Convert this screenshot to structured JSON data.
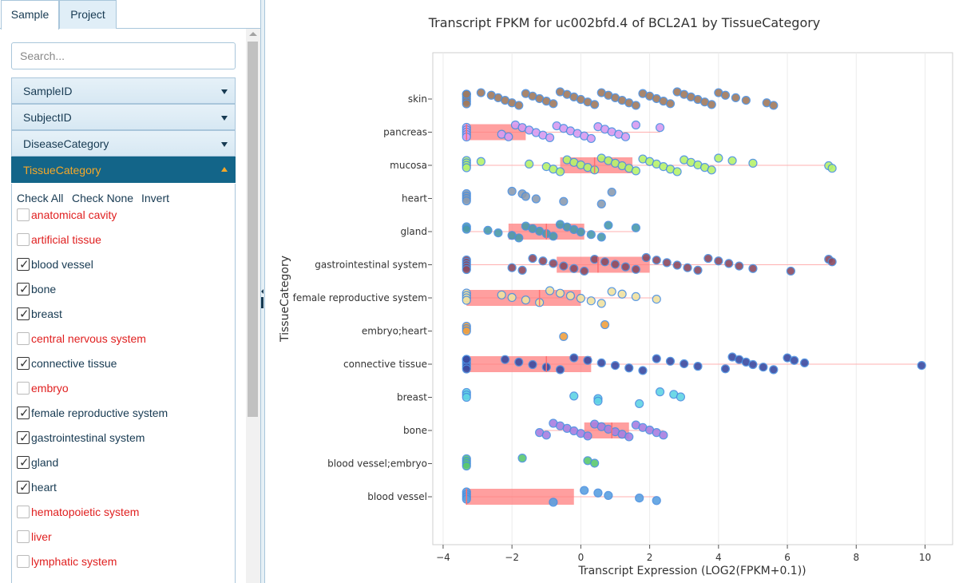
{
  "tabs": [
    {
      "label": "Sample",
      "active": true
    },
    {
      "label": "Project",
      "active": false
    }
  ],
  "search": {
    "placeholder": "Search..."
  },
  "accordion": [
    {
      "label": "SampleID",
      "open": false
    },
    {
      "label": "SubjectID",
      "open": false
    },
    {
      "label": "DiseaseCategory",
      "open": false
    },
    {
      "label": "TissueCategory",
      "open": true
    }
  ],
  "filter_actions": {
    "check_all": "Check All",
    "check_none": "Check None",
    "invert": "Invert"
  },
  "tissue_filters": [
    {
      "label": "anatomical cavity",
      "checked": false
    },
    {
      "label": "artificial tissue",
      "checked": false
    },
    {
      "label": "blood vessel",
      "checked": true
    },
    {
      "label": "bone",
      "checked": true
    },
    {
      "label": "breast",
      "checked": true
    },
    {
      "label": "central nervous system",
      "checked": false
    },
    {
      "label": "connective tissue",
      "checked": true
    },
    {
      "label": "embryo",
      "checked": false
    },
    {
      "label": "female reproductive system",
      "checked": true
    },
    {
      "label": "gastrointestinal system",
      "checked": true
    },
    {
      "label": "gland",
      "checked": true
    },
    {
      "label": "heart",
      "checked": true
    },
    {
      "label": "hematopoietic system",
      "checked": false
    },
    {
      "label": "liver",
      "checked": false
    },
    {
      "label": "lymphatic system",
      "checked": false
    }
  ],
  "colors": {
    "accent": "#136589",
    "accent_text": "#f6a828",
    "unchecked_text": "#e02020",
    "checked_text": "#173a52",
    "box": "#ff7f7f"
  },
  "icons": {
    "accordion_closed": "caret-down-icon",
    "accordion_open": "caret-up-icon",
    "check": "checkmark-icon"
  },
  "chart_data": {
    "type": "scatter",
    "title": "Transcript FPKM for uc002bfd.4 of BCL2A1 by TissueCategory",
    "xlabel": "Transcript Expression (LOG2(FPKM+0.1))",
    "ylabel": "TissueCategory",
    "xlim": [
      -4.3,
      10.8
    ],
    "xticks": [
      -4,
      -2,
      0,
      2,
      4,
      6,
      8,
      10
    ],
    "grid": true,
    "legend": "none",
    "categories": [
      "skin",
      "pancreas",
      "mucosa",
      "heart",
      "gland",
      "gastrointestinal system",
      "female reproductive system",
      "embryo;heart",
      "connective tissue",
      "breast",
      "bone",
      "blood vessel;embryo",
      "blood vessel"
    ],
    "series": [
      {
        "category": "skin",
        "color": "#a07a5e",
        "box": null,
        "points": [
          -3.32,
          -3.32,
          -3.32,
          -3.32,
          -3.32,
          -3.32,
          -2.9,
          -2.6,
          -2.4,
          -2.2,
          -2.0,
          -1.8,
          -1.6,
          -1.4,
          -1.2,
          -1.0,
          -0.8,
          -0.6,
          -0.4,
          -0.2,
          0.0,
          0.2,
          0.4,
          0.6,
          0.8,
          1.0,
          1.2,
          1.4,
          1.6,
          1.8,
          2.0,
          2.2,
          2.4,
          2.6,
          2.8,
          3.0,
          3.2,
          3.4,
          3.6,
          3.8,
          4.0,
          4.2,
          4.5,
          4.8,
          5.4,
          5.6
        ]
      },
      {
        "category": "pancreas",
        "color": "#d79bf0",
        "box": [
          -3.32,
          -3.32,
          -1.6
        ],
        "points": [
          -3.32,
          -3.32,
          -3.32,
          -3.32,
          -3.32,
          -2.3,
          -2.1,
          -1.9,
          -1.7,
          -1.5,
          -1.3,
          -1.1,
          -0.9,
          -0.7,
          -0.5,
          -0.3,
          -0.1,
          0.1,
          0.3,
          0.5,
          0.7,
          0.9,
          1.1,
          1.3,
          1.6,
          2.3
        ]
      },
      {
        "category": "mucosa",
        "color": "#b6f26c",
        "box": [
          -0.6,
          0.4,
          1.5
        ],
        "points": [
          -3.32,
          -3.32,
          -3.32,
          -3.32,
          -2.9,
          -1.5,
          -1.0,
          -0.8,
          -0.6,
          -0.4,
          -0.2,
          0.0,
          0.2,
          0.4,
          0.6,
          0.8,
          1.0,
          1.2,
          1.4,
          1.6,
          1.8,
          2.0,
          2.2,
          2.4,
          2.6,
          2.8,
          3.0,
          3.2,
          3.4,
          3.6,
          3.8,
          4.0,
          4.4,
          5.0,
          7.2,
          7.3
        ]
      },
      {
        "category": "heart",
        "color": "#8c9cb0",
        "box": null,
        "points": [
          -3.32,
          -3.32,
          -3.32,
          -3.32,
          -2.0,
          -1.7,
          -1.6,
          -1.3,
          -0.5,
          0.6,
          0.9
        ]
      },
      {
        "category": "gland",
        "color": "#4a9aaa",
        "box": [
          -2.1,
          -1.0,
          0.1
        ],
        "points": [
          -3.32,
          -3.32,
          -2.7,
          -2.4,
          -2.0,
          -1.8,
          -1.6,
          -1.4,
          -1.2,
          -1.0,
          -0.8,
          -0.6,
          -0.4,
          -0.2,
          0.0,
          0.3,
          0.6,
          0.8,
          1.6
        ]
      },
      {
        "category": "gastrointestinal system",
        "color": "#8b4a60",
        "box": [
          -0.7,
          0.5,
          2.0
        ],
        "points": [
          -3.32,
          -3.32,
          -3.32,
          -3.32,
          -3.32,
          -2.0,
          -1.7,
          -1.4,
          -1.1,
          -0.8,
          -0.5,
          -0.2,
          0.1,
          0.4,
          0.7,
          1.0,
          1.3,
          1.6,
          1.9,
          2.2,
          2.5,
          2.8,
          3.1,
          3.4,
          3.7,
          4.0,
          4.3,
          4.6,
          5.0,
          6.1,
          7.2,
          7.3
        ]
      },
      {
        "category": "female reproductive system",
        "color": "#f0e2a0",
        "box": [
          -3.32,
          -1.2,
          0.0
        ],
        "points": [
          -3.32,
          -3.32,
          -3.32,
          -3.32,
          -2.3,
          -2.0,
          -1.6,
          -1.2,
          -0.9,
          -0.6,
          -0.3,
          0.0,
          0.3,
          0.6,
          0.9,
          1.2,
          1.6,
          2.2
        ]
      },
      {
        "category": "embryo;heart",
        "color": "#f0a040",
        "box": null,
        "points": [
          -3.32,
          -3.32,
          -3.32,
          -0.5,
          0.7
        ]
      },
      {
        "category": "connective tissue",
        "color": "#3a4aa0",
        "box": [
          -3.32,
          -1.0,
          0.3
        ],
        "points": [
          -3.32,
          -3.32,
          -3.32,
          -3.32,
          -3.32,
          -3.32,
          -2.2,
          -1.8,
          -1.4,
          -1.0,
          -0.6,
          -0.2,
          0.2,
          0.6,
          1.0,
          1.4,
          1.8,
          2.2,
          2.6,
          3.0,
          3.4,
          4.2,
          4.4,
          4.6,
          4.8,
          5.0,
          5.3,
          5.6,
          6.0,
          6.2,
          6.5,
          9.9
        ]
      },
      {
        "category": "breast",
        "color": "#60d4e4",
        "box": null,
        "points": [
          -3.32,
          -3.32,
          -3.32,
          -0.2,
          0.5,
          0.5,
          1.7,
          2.3,
          2.7,
          2.9
        ]
      },
      {
        "category": "bone",
        "color": "#a87ee0",
        "box": [
          0.1,
          0.9,
          1.4
        ],
        "points": [
          -1.2,
          -1.0,
          -0.8,
          -0.6,
          -0.4,
          -0.2,
          0.0,
          0.2,
          0.4,
          0.6,
          0.8,
          1.0,
          1.2,
          1.4,
          1.6,
          1.8,
          2.0,
          2.2,
          2.4
        ]
      },
      {
        "category": "blood vessel;embryo",
        "color": "#5ac870",
        "box": null,
        "points": [
          -3.32,
          -3.32,
          -3.32,
          -3.32,
          -1.7,
          0.2,
          0.4
        ]
      },
      {
        "category": "blood vessel",
        "color": "#5aa0e0",
        "box": [
          -3.32,
          -3.32,
          -0.2
        ],
        "points": [
          -3.32,
          -3.32,
          -3.32,
          -3.32,
          -0.8,
          0.1,
          0.5,
          0.8,
          1.7,
          2.2
        ]
      }
    ]
  }
}
